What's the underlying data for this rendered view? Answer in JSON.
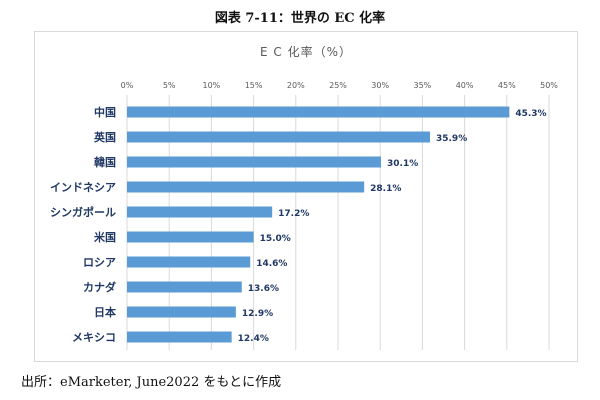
{
  "figure_title": "図表 7-11：世界の EC 化率",
  "source_note": "出所：eMarketer, June2022 をもとに作成",
  "chart_data": {
    "type": "bar",
    "orientation": "horizontal",
    "title": "E C 化率（%）",
    "xlabel": "",
    "ylabel": "",
    "xlim": [
      0,
      50
    ],
    "tick_step": 5,
    "tick_labels": [
      "0%",
      "5%",
      "10%",
      "15%",
      "20%",
      "25%",
      "30%",
      "35%",
      "40%",
      "45%",
      "50%"
    ],
    "categories": [
      "中国",
      "英国",
      "韓国",
      "インドネシア",
      "シンガポール",
      "米国",
      "ロシア",
      "カナダ",
      "日本",
      "メキシコ"
    ],
    "values": [
      45.3,
      35.9,
      30.1,
      28.1,
      17.2,
      15.0,
      14.6,
      13.6,
      12.9,
      12.4
    ],
    "value_labels": [
      "45.3%",
      "35.9%",
      "30.1%",
      "28.1%",
      "17.2%",
      "15.0%",
      "14.6%",
      "13.6%",
      "12.9%",
      "12.4%"
    ],
    "axis_position": "top",
    "grid": true,
    "legend": "none",
    "bar_color": "#5b9bd5",
    "label_color": "#1f3864",
    "grid_color": "#d9d9d9"
  }
}
